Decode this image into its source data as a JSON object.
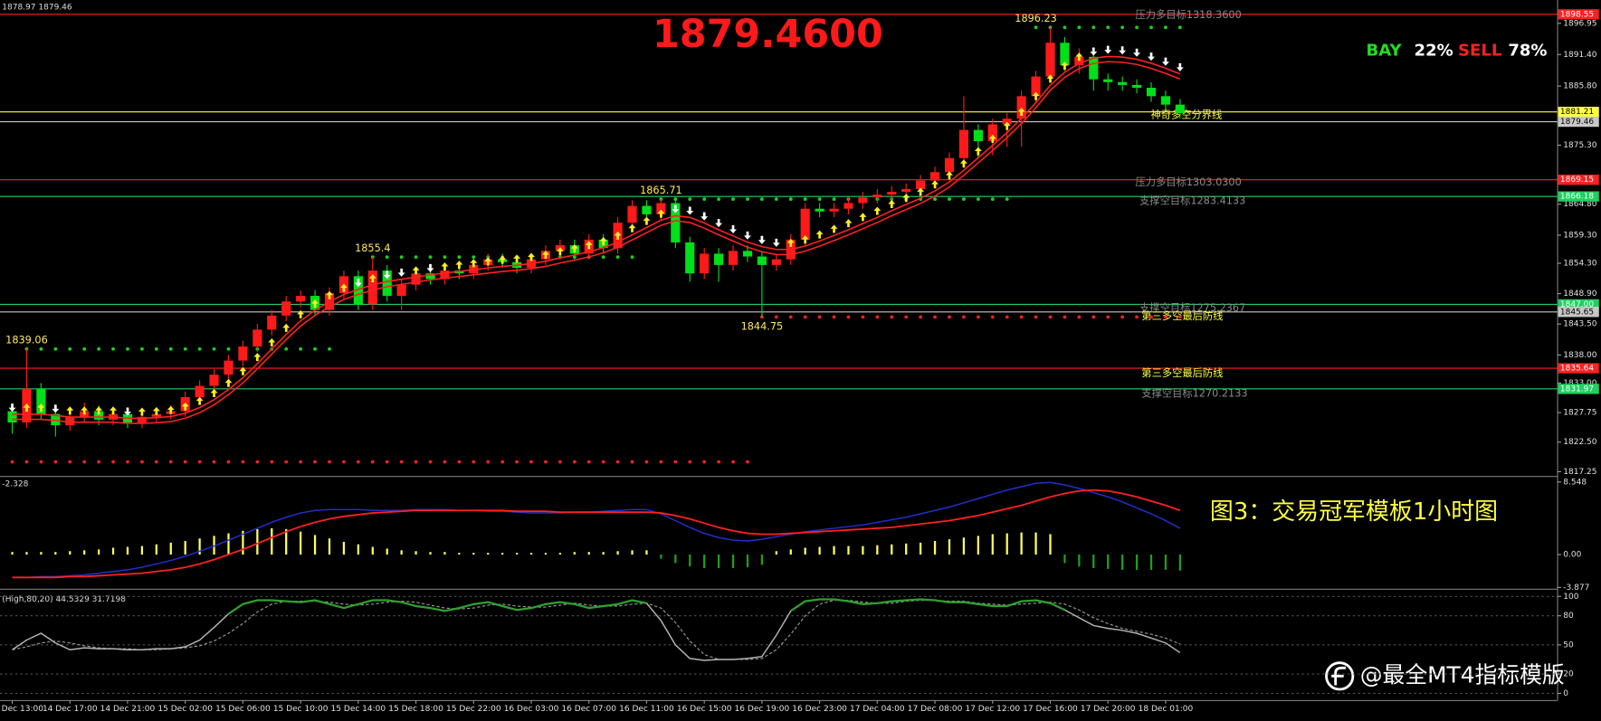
{
  "chart_data": {
    "type": "candlestick",
    "title": "1879.4600",
    "quote": "1878.97 1879.46",
    "sentiment": {
      "labels": [
        "BAY",
        "SELL"
      ],
      "colors": [
        "#22dd22",
        "#ff2020"
      ],
      "values": [
        22,
        78
      ],
      "value_labels": [
        "22%",
        "78%"
      ]
    },
    "categories": [
      "Dec 13:00",
      null,
      null,
      null,
      "14 Dec 17:00",
      null,
      null,
      null,
      "14 Dec 21:00",
      null,
      null,
      null,
      "15 Dec 02:00",
      null,
      null,
      null,
      "15 Dec 06:00",
      null,
      null,
      null,
      "15 Dec 10:00",
      null,
      null,
      null,
      "15 Dec 14:00",
      null,
      null,
      null,
      "15 Dec 18:00",
      null,
      null,
      null,
      "15 Dec 22:00",
      null,
      null,
      null,
      "16 Dec 03:00",
      null,
      null,
      null,
      "16 Dec 07:00",
      null,
      null,
      null,
      "16 Dec 11:00",
      null,
      null,
      null,
      "16 Dec 15:00",
      null,
      null,
      null,
      "16 Dec 19:00",
      null,
      null,
      null,
      "16 Dec 23:00",
      null,
      null,
      null,
      "17 Dec 04:00",
      null,
      null,
      null,
      "17 Dec 08:00",
      null,
      null,
      null,
      "17 Dec 12:00",
      null,
      null,
      null,
      "17 Dec 16:00",
      null,
      null,
      null,
      "17 Dec 20:00",
      null,
      null,
      null,
      "18 Dec 01:00",
      null
    ],
    "open": [
      1828.0,
      1826.0,
      1832.0,
      1827.5,
      1825.5,
      1827.0,
      1828.0,
      1826.5,
      1827.5,
      1826.0,
      1827.0,
      1827.5,
      1828.0,
      1830.5,
      1832.5,
      1834.5,
      1837.0,
      1839.5,
      1842.5,
      1845.0,
      1847.5,
      1848.5,
      1846.0,
      1849.0,
      1852.0,
      1847.0,
      1853.0,
      1848.5,
      1850.5,
      1852.5,
      1851.5,
      1853.0,
      1852.5,
      1854.0,
      1855.0,
      1854.5,
      1853.5,
      1855.0,
      1856.5,
      1857.5,
      1856.0,
      1858.5,
      1857.0,
      1861.5,
      1864.5,
      1863.0,
      1865.0,
      1858.0,
      1852.5,
      1856.0,
      1854.0,
      1856.5,
      1855.5,
      1854.0,
      1855.0,
      1858.5,
      1864.0,
      1863.5,
      1864.0,
      1865.0,
      1866.0,
      1866.5,
      1867.0,
      1867.5,
      1869.0,
      1870.5,
      1873.0,
      1878.0,
      1876.0,
      1879.0,
      1880.0,
      1884.0,
      1887.5,
      1893.5,
      1889.5,
      1891.0,
      1887.0,
      1886.5,
      1886.0,
      1885.5,
      1884.0,
      1882.5
    ],
    "high": [
      1829.0,
      1839.06,
      1833.0,
      1828.5,
      1828.0,
      1829.5,
      1829.0,
      1828.5,
      1828.5,
      1828.0,
      1828.5,
      1829.0,
      1831.5,
      1833.5,
      1835.5,
      1838.0,
      1840.5,
      1843.5,
      1846.0,
      1848.5,
      1849.5,
      1849.5,
      1850.0,
      1853.0,
      1853.0,
      1855.4,
      1854.0,
      1851.5,
      1853.5,
      1853.5,
      1854.0,
      1854.0,
      1855.0,
      1856.0,
      1856.0,
      1855.5,
      1856.0,
      1857.5,
      1858.5,
      1858.5,
      1859.5,
      1859.5,
      1862.5,
      1865.5,
      1865.5,
      1865.71,
      1865.5,
      1859.0,
      1857.0,
      1857.0,
      1857.5,
      1857.5,
      1856.5,
      1856.0,
      1859.5,
      1865.0,
      1865.0,
      1865.0,
      1866.0,
      1867.0,
      1867.5,
      1868.0,
      1868.5,
      1870.0,
      1871.5,
      1874.0,
      1884.0,
      1879.0,
      1880.0,
      1881.0,
      1885.0,
      1888.5,
      1896.23,
      1894.5,
      1892.5,
      1892.0,
      1888.0,
      1887.5,
      1887.0,
      1886.5,
      1885.0,
      1883.5
    ],
    "low": [
      1824.0,
      1825.0,
      1826.5,
      1823.5,
      1824.5,
      1826.0,
      1825.5,
      1825.5,
      1825.0,
      1825.0,
      1826.0,
      1826.5,
      1827.0,
      1829.5,
      1831.5,
      1833.5,
      1836.0,
      1838.5,
      1841.5,
      1844.0,
      1846.5,
      1845.0,
      1845.0,
      1848.0,
      1846.0,
      1846.0,
      1847.5,
      1846.0,
      1849.5,
      1850.5,
      1850.5,
      1851.5,
      1851.5,
      1853.0,
      1853.5,
      1852.5,
      1852.5,
      1854.0,
      1855.5,
      1855.0,
      1855.0,
      1856.0,
      1856.0,
      1860.5,
      1862.0,
      1862.0,
      1857.0,
      1851.0,
      1851.5,
      1851.0,
      1853.0,
      1854.5,
      1844.75,
      1853.0,
      1854.0,
      1857.5,
      1862.5,
      1862.5,
      1863.0,
      1864.0,
      1865.0,
      1865.5,
      1866.0,
      1866.5,
      1868.0,
      1869.5,
      1872.0,
      1873.0,
      1873.5,
      1875.0,
      1875.0,
      1883.0,
      1886.5,
      1888.5,
      1888.0,
      1885.0,
      1885.0,
      1885.0,
      1884.5,
      1883.0,
      1881.5,
      1880.0
    ],
    "close": [
      1826.0,
      1832.0,
      1827.5,
      1825.5,
      1827.0,
      1828.0,
      1826.5,
      1827.5,
      1826.0,
      1827.0,
      1827.5,
      1828.0,
      1830.5,
      1832.5,
      1834.5,
      1837.0,
      1839.5,
      1842.5,
      1845.0,
      1847.5,
      1848.5,
      1846.0,
      1849.0,
      1852.0,
      1847.0,
      1853.0,
      1848.5,
      1850.5,
      1852.5,
      1851.5,
      1853.0,
      1852.5,
      1854.0,
      1855.0,
      1854.5,
      1853.5,
      1855.0,
      1856.5,
      1857.5,
      1856.0,
      1858.5,
      1857.0,
      1861.5,
      1864.5,
      1863.0,
      1865.0,
      1858.0,
      1852.5,
      1856.0,
      1854.0,
      1856.5,
      1855.5,
      1854.0,
      1855.0,
      1858.5,
      1864.0,
      1863.5,
      1864.0,
      1865.0,
      1866.0,
      1866.5,
      1867.0,
      1867.5,
      1869.0,
      1870.5,
      1873.0,
      1878.0,
      1876.0,
      1879.0,
      1880.0,
      1884.0,
      1887.5,
      1893.5,
      1889.5,
      1891.0,
      1887.0,
      1886.5,
      1886.0,
      1885.5,
      1884.0,
      1882.5,
      1881.0
    ],
    "up_color": "#ff1a1a",
    "down_color": "#00e01a",
    "ma": {
      "color": "#ff2020",
      "values": [
        1827.0,
        1827.0,
        1827.0,
        1826.8,
        1826.5,
        1826.5,
        1826.5,
        1826.5,
        1826.3,
        1826.3,
        1826.4,
        1826.6,
        1827.2,
        1828.2,
        1829.6,
        1831.4,
        1833.5,
        1836.0,
        1838.6,
        1841.2,
        1843.6,
        1845.5,
        1847.0,
        1848.3,
        1849.2,
        1850.0,
        1850.6,
        1851.0,
        1851.4,
        1851.8,
        1852.1,
        1852.4,
        1852.7,
        1853.0,
        1853.3,
        1853.5,
        1853.8,
        1854.2,
        1854.8,
        1855.3,
        1855.9,
        1856.6,
        1857.6,
        1858.9,
        1860.2,
        1861.5,
        1862.3,
        1862.0,
        1861.0,
        1859.8,
        1858.7,
        1857.6,
        1856.8,
        1856.3,
        1856.3,
        1856.9,
        1857.8,
        1858.8,
        1859.8,
        1860.9,
        1862.0,
        1863.2,
        1864.3,
        1865.4,
        1866.7,
        1868.3,
        1870.4,
        1872.6,
        1874.8,
        1877.1,
        1879.6,
        1882.4,
        1885.5,
        1887.8,
        1889.4,
        1890.3,
        1890.6,
        1890.5,
        1890.1,
        1889.4,
        1888.5,
        1887.5
      ]
    },
    "ylim": [
      1816.5,
      1901.1
    ],
    "yticks": [
      1896.95,
      {
        "value": 1891.4,
        "label": "1891.40"
      },
      {
        "value": 1885.8,
        "label": "1885.80"
      },
      {
        "value": 1875.3,
        "label": "1875.30"
      },
      {
        "value": 1864.8,
        "label": "1864.80"
      },
      {
        "value": 1859.3,
        "label": "1859.30"
      },
      {
        "value": 1854.3,
        "label": "1854.30"
      },
      {
        "value": 1848.9,
        "label": "1848.90"
      },
      {
        "value": 1843.5,
        "label": "1843.50"
      },
      {
        "value": 1838,
        "label": "1838.00"
      },
      {
        "value": 1833,
        "label": "1833.00"
      },
      1827.75,
      {
        "value": 1822.5,
        "label": "1822.50"
      },
      1817.25
    ],
    "levels": [
      {
        "value": 1898.55,
        "color": "#ff2020",
        "text_color": "#ffffff"
      },
      {
        "value": 1881.21,
        "color": "#ffff40",
        "text_color": "#000000"
      },
      {
        "value": 1879.46,
        "color": "#c8c8c8",
        "text_color": "#000000"
      },
      {
        "value": 1869.15,
        "color": "#ff2020",
        "text_color": "#ffffff"
      },
      {
        "value": 1866.18,
        "color": "#20d060",
        "text_color": "#ffffff"
      },
      {
        "value": 1847,
        "label": "1847.00",
        "color": "#20d060",
        "text_color": "#ffffff"
      },
      {
        "value": 1845.65,
        "color": "#c8c8c8",
        "text_color": "#000000"
      },
      {
        "value": 1835.64,
        "color": "#ff2020",
        "text_color": "#ffffff"
      },
      {
        "value": 1831.97,
        "color": "#20d060",
        "text_color": "#ffffff"
      }
    ],
    "dot_levels": [
      {
        "value": 1839.06,
        "start": 1,
        "end": 22,
        "color": "#22cc22",
        "show_value": true,
        "value_position": "above"
      },
      {
        "value": 1855.4,
        "start": 25,
        "end": 43,
        "color": "#22cc22",
        "show_value": true,
        "value_position": "above"
      },
      {
        "value": 1865.71,
        "start": 45,
        "end": 69,
        "color": "#22cc22",
        "show_value": true,
        "value_position": "above"
      },
      {
        "value": 1896.23,
        "start": 71,
        "end": 81,
        "color": "#22cc22",
        "show_value": true,
        "value_position": "above"
      },
      {
        "value": 1844.75,
        "start": 52,
        "end": 81,
        "color": "#ee2020",
        "show_value": true,
        "value_position": "below"
      },
      {
        "value": 1819,
        "start": 0,
        "end": 51,
        "color": "#ee2020",
        "show_value": false,
        "value_position": "above"
      }
    ],
    "annotations": [
      {
        "text": "压力多目标1318.3600",
        "color": "#8a8a8a"
      },
      {
        "text": "神奇多空分界线",
        "color": "#ffff40"
      },
      {
        "text": "压力多目标1303.0300",
        "color": "#8a8a8a"
      },
      {
        "text": "支撑空目标1283.4133",
        "color": "#8a8a8a"
      },
      {
        "text": "支撑空目标1275.2367",
        "color": "#8a8a8a"
      },
      {
        "text": "第三多空最后防线",
        "color": "#ffff40"
      },
      {
        "text": "第三多空最后防线",
        "color": "#ffff40"
      },
      {
        "text": "支撑空目标1270.2133",
        "color": "#8a8a8a"
      }
    ],
    "caption": "图3：交易冠军模板1小时图",
    "watermark": "@最全MT4指标模版",
    "macd": {
      "header": "-2.328",
      "ylim": [
        -3.97,
        9.15
      ],
      "yticks": [
        8.548,
        {
          "value": 0,
          "label": "0.00"
        },
        -3.877
      ],
      "pos_color": "#ffff60",
      "neg_color": "#1f9f1f",
      "macd_color": "#2030d0",
      "signal_color": "#ff2020",
      "histogram": [
        0.3,
        0.3,
        0.3,
        0.3,
        0.4,
        0.5,
        0.6,
        0.8,
        0.9,
        1.0,
        1.2,
        1.4,
        1.6,
        1.9,
        2.2,
        2.5,
        2.8,
        3.0,
        3.1,
        3.0,
        2.7,
        2.3,
        1.9,
        1.5,
        1.2,
        0.9,
        0.7,
        0.5,
        0.4,
        0.3,
        0.3,
        0.2,
        0.2,
        0.2,
        0.2,
        0.2,
        0.2,
        0.2,
        0.2,
        0.3,
        0.3,
        0.3,
        0.4,
        0.5,
        0.5,
        -0.5,
        -1.0,
        -1.4,
        -1.6,
        -1.6,
        -1.6,
        -1.5,
        -1.2,
        0.4,
        0.6,
        0.8,
        0.9,
        1.0,
        1.0,
        1.0,
        1.1,
        1.2,
        1.3,
        1.4,
        1.6,
        1.8,
        2.0,
        2.2,
        2.4,
        2.5,
        2.6,
        2.6,
        2.4,
        -1.0,
        -1.4,
        -1.6,
        -1.7,
        -1.8,
        -1.8,
        -1.8,
        -1.8,
        -1.9
      ],
      "macd": [
        -2.7,
        -2.7,
        -2.6,
        -2.6,
        -2.5,
        -2.4,
        -2.2,
        -2.0,
        -1.8,
        -1.5,
        -1.1,
        -0.7,
        -0.2,
        0.4,
        1.0,
        1.7,
        2.4,
        3.1,
        3.8,
        4.4,
        4.9,
        5.2,
        5.3,
        5.3,
        5.3,
        5.2,
        5.2,
        5.2,
        5.3,
        5.3,
        5.3,
        5.2,
        5.2,
        5.1,
        5.1,
        5.0,
        4.9,
        4.9,
        4.9,
        5.0,
        5.0,
        5.1,
        5.2,
        5.3,
        5.3,
        4.8,
        4.0,
        3.2,
        2.5,
        2.0,
        1.7,
        1.6,
        1.8,
        2.1,
        2.4,
        2.7,
        2.9,
        3.1,
        3.3,
        3.5,
        3.8,
        4.1,
        4.4,
        4.8,
        5.2,
        5.6,
        6.1,
        6.6,
        7.1,
        7.6,
        8.0,
        8.4,
        8.5,
        8.2,
        7.8,
        7.3,
        6.8,
        6.2,
        5.5,
        4.8,
        4.0,
        3.1
      ],
      "signal": [
        -2.7,
        -2.7,
        -2.7,
        -2.7,
        -2.6,
        -2.6,
        -2.5,
        -2.4,
        -2.3,
        -2.2,
        -2.0,
        -1.8,
        -1.5,
        -1.1,
        -0.6,
        0.0,
        0.6,
        1.3,
        2.0,
        2.7,
        3.3,
        3.8,
        4.2,
        4.5,
        4.7,
        4.9,
        5.0,
        5.1,
        5.2,
        5.2,
        5.2,
        5.2,
        5.2,
        5.2,
        5.2,
        5.1,
        5.1,
        5.1,
        5.0,
        5.0,
        5.0,
        5.0,
        5.0,
        5.0,
        5.0,
        4.9,
        4.6,
        4.2,
        3.7,
        3.2,
        2.8,
        2.5,
        2.4,
        2.4,
        2.5,
        2.6,
        2.7,
        2.8,
        2.9,
        3.0,
        3.1,
        3.2,
        3.4,
        3.6,
        3.8,
        4.0,
        4.3,
        4.6,
        5.0,
        5.4,
        5.8,
        6.3,
        6.8,
        7.2,
        7.5,
        7.6,
        7.5,
        7.2,
        6.8,
        6.3,
        5.8,
        5.2
      ]
    },
    "stoch": {
      "header": "(High,80,20) 44.5329 31.7198",
      "ylim": [
        -7.4,
        106.3
      ],
      "yticks": [
        100,
        80,
        50,
        20,
        0
      ],
      "grid": true,
      "highlight_above": 80,
      "k_color": "#b4b4b4",
      "d_color": "#9a9a9a",
      "highlight_color": "#2fa02f",
      "k": [
        45,
        55,
        62,
        52,
        45,
        47,
        46,
        46,
        45,
        45,
        46,
        46,
        48,
        55,
        68,
        82,
        92,
        96,
        96,
        95,
        94,
        96,
        92,
        88,
        92,
        96,
        96,
        94,
        90,
        88,
        85,
        88,
        92,
        94,
        90,
        86,
        88,
        92,
        94,
        92,
        88,
        90,
        92,
        96,
        93,
        75,
        50,
        36,
        34,
        35,
        35,
        36,
        38,
        60,
        85,
        95,
        97,
        97,
        95,
        92,
        93,
        95,
        96,
        97,
        96,
        94,
        94,
        92,
        90,
        90,
        95,
        96,
        93,
        86,
        78,
        70,
        67,
        65,
        62,
        57,
        52,
        42
      ],
      "d": [
        45,
        48,
        52,
        54,
        52,
        49,
        47,
        46,
        46,
        45,
        45,
        46,
        47,
        49,
        54,
        62,
        72,
        84,
        92,
        95,
        95,
        95,
        94,
        92,
        91,
        92,
        94,
        95,
        94,
        91,
        88,
        87,
        88,
        91,
        92,
        90,
        89,
        89,
        91,
        93,
        91,
        90,
        90,
        92,
        93,
        88,
        73,
        54,
        40,
        35,
        35,
        35,
        36,
        45,
        61,
        80,
        92,
        96,
        96,
        94,
        93,
        93,
        95,
        96,
        96,
        95,
        95,
        93,
        92,
        91,
        92,
        93,
        94,
        92,
        86,
        78,
        72,
        67,
        64,
        61,
        57,
        51
      ]
    }
  }
}
